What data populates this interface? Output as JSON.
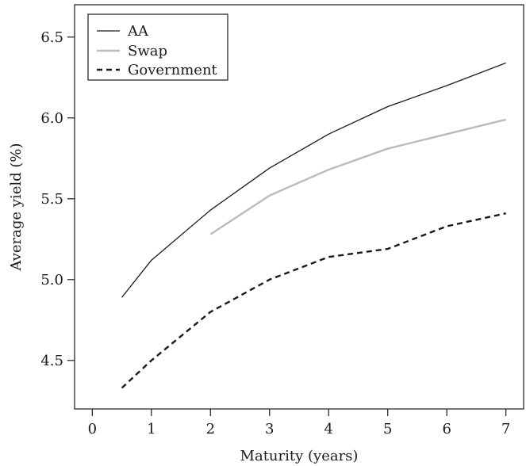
{
  "chart_data": {
    "type": "line",
    "title": "",
    "xlabel": "Maturity (years)",
    "ylabel": "Average yield (%)",
    "xlim": [
      -0.3,
      7.3
    ],
    "ylim": [
      4.2,
      6.7
    ],
    "xticks": [
      0,
      1,
      2,
      3,
      4,
      5,
      6,
      7
    ],
    "yticks": [
      4.5,
      5.0,
      5.5,
      6.0,
      6.5
    ],
    "xtick_labels": [
      "0",
      "1",
      "2",
      "3",
      "4",
      "5",
      "6",
      "7"
    ],
    "ytick_labels": [
      "4.5",
      "5.0",
      "5.5",
      "6.0",
      "6.5"
    ],
    "grid": false,
    "legend_position": "top-left",
    "series": [
      {
        "name": "AA",
        "color": "#1a1a1a",
        "style": "solid",
        "x": [
          0.5,
          1,
          2,
          3,
          4,
          5,
          6,
          7
        ],
        "y": [
          4.89,
          5.12,
          5.43,
          5.69,
          5.9,
          6.07,
          6.2,
          6.34
        ]
      },
      {
        "name": "Swap",
        "color": "#bbbbbb",
        "style": "solid",
        "x": [
          2,
          3,
          4,
          5,
          6,
          7
        ],
        "y": [
          5.28,
          5.52,
          5.68,
          5.81,
          5.9,
          5.99
        ]
      },
      {
        "name": "Government",
        "color": "#1a1a1a",
        "style": "dashed",
        "x": [
          0.5,
          1,
          2,
          3,
          4,
          5,
          6,
          7
        ],
        "y": [
          4.33,
          4.5,
          4.8,
          5.0,
          5.14,
          5.19,
          5.33,
          5.41
        ]
      }
    ]
  }
}
